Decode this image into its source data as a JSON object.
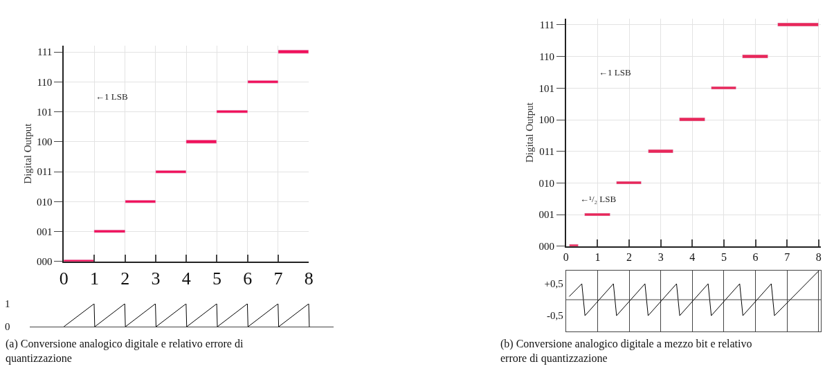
{
  "chart_data": [
    {
      "type": "bar",
      "orientation": "horizontal",
      "categories": [
        "111",
        "110",
        "101",
        "100",
        "011",
        "010",
        "001",
        "000"
      ],
      "values": [
        1,
        1,
        1,
        1,
        1,
        1,
        1,
        1
      ],
      "base": [
        7,
        6,
        5,
        4,
        3,
        2,
        1,
        0
      ],
      "color": "#f0105a",
      "xlim": [
        0,
        8
      ],
      "xticks": [
        0,
        1,
        2,
        3,
        4,
        5,
        6,
        7,
        8
      ],
      "ylabel": "Digital Output",
      "grid": true,
      "annotations": [
        "←1 LSB"
      ]
    },
    {
      "type": "line",
      "x": [
        0,
        0.99,
        1.01,
        1.99,
        2.01,
        2.99,
        3.01,
        3.99,
        4.01,
        4.99,
        5.01,
        5.99,
        6.01,
        6.99,
        7.01,
        7.99,
        8.01
      ],
      "values": [
        0,
        1,
        0,
        1,
        0,
        1,
        0,
        1,
        0,
        1,
        0,
        1,
        0,
        1,
        0,
        1,
        0
      ],
      "color": "#000000",
      "xlim": [
        -1.1,
        8.8
      ],
      "xticks": [
        0,
        1,
        2,
        3,
        4,
        5,
        6,
        7,
        8
      ],
      "ylim": [
        0,
        1
      ],
      "yticks": [
        0,
        1
      ],
      "tick_labels": "y",
      "annotations": [
        "(a) Conversione analogico digitale e relativo errore di quantizzazione"
      ]
    },
    {
      "type": "bar",
      "orientation": "horizontal",
      "categories": [
        "111",
        "110",
        "101",
        "100",
        "011",
        "010",
        "001",
        "000"
      ],
      "values": [
        1.3,
        0.8,
        0.8,
        0.8,
        0.8,
        0.8,
        0.8,
        0.3
      ],
      "base": [
        6.7,
        5.6,
        4.6,
        3.6,
        2.6,
        1.6,
        0.6,
        0.1
      ],
      "color": "#e8275a",
      "xlim": [
        0,
        8.07
      ],
      "xticks": [
        0,
        1,
        2,
        3,
        4,
        5,
        6,
        7,
        8
      ],
      "ylabel": "Digital Output",
      "grid": true,
      "annotations": [
        "←1 LSB",
        "←¹/₂ LSB"
      ]
    },
    {
      "type": "line",
      "x": [
        0.1,
        0.5,
        0.6,
        1.5,
        1.6,
        2.5,
        2.6,
        3.5,
        3.6,
        4.5,
        4.6,
        5.5,
        5.6,
        6.5,
        6.6,
        8
      ],
      "values": [
        0.1,
        0.5,
        -0.5,
        0.5,
        -0.5,
        0.5,
        -0.5,
        0.5,
        -0.5,
        0.5,
        -0.5,
        0.5,
        -0.5,
        0.5,
        -0.5,
        0.9
      ],
      "color": "#000000",
      "xlim": [
        0,
        8.07
      ],
      "ylim": [
        -1,
        0.92
      ],
      "xticks": [
        0,
        1,
        2,
        3,
        4,
        5,
        6,
        7,
        8
      ],
      "yticks": [
        {
          "value": 0.5,
          "label": "+0,5"
        },
        {
          "value": -0.5,
          "label": "-0,5"
        }
      ],
      "tick_labels": "y",
      "grid": "x",
      "ref_lines": [
        {
          "axis": "y",
          "value": 0
        }
      ],
      "annotations": [
        "(b) Conversione analogico digitale a mezzo bit e relativo errore di quantizzazione"
      ]
    }
  ]
}
